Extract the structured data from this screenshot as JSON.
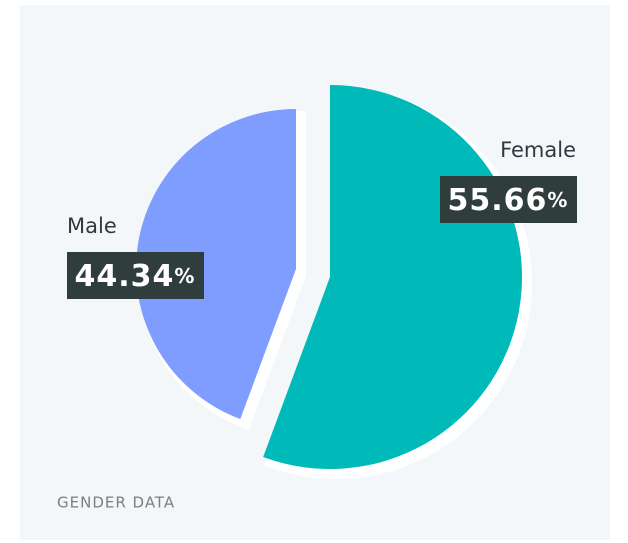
{
  "chart_data": {
    "type": "pie",
    "caption": "GENDER DATA",
    "categories": [
      "Female",
      "Male"
    ],
    "values": [
      55.66,
      44.34
    ],
    "value_labels": [
      "55.66%",
      "44.34%"
    ],
    "colors": [
      "#00b9b9",
      "#7f9dff"
    ]
  }
}
